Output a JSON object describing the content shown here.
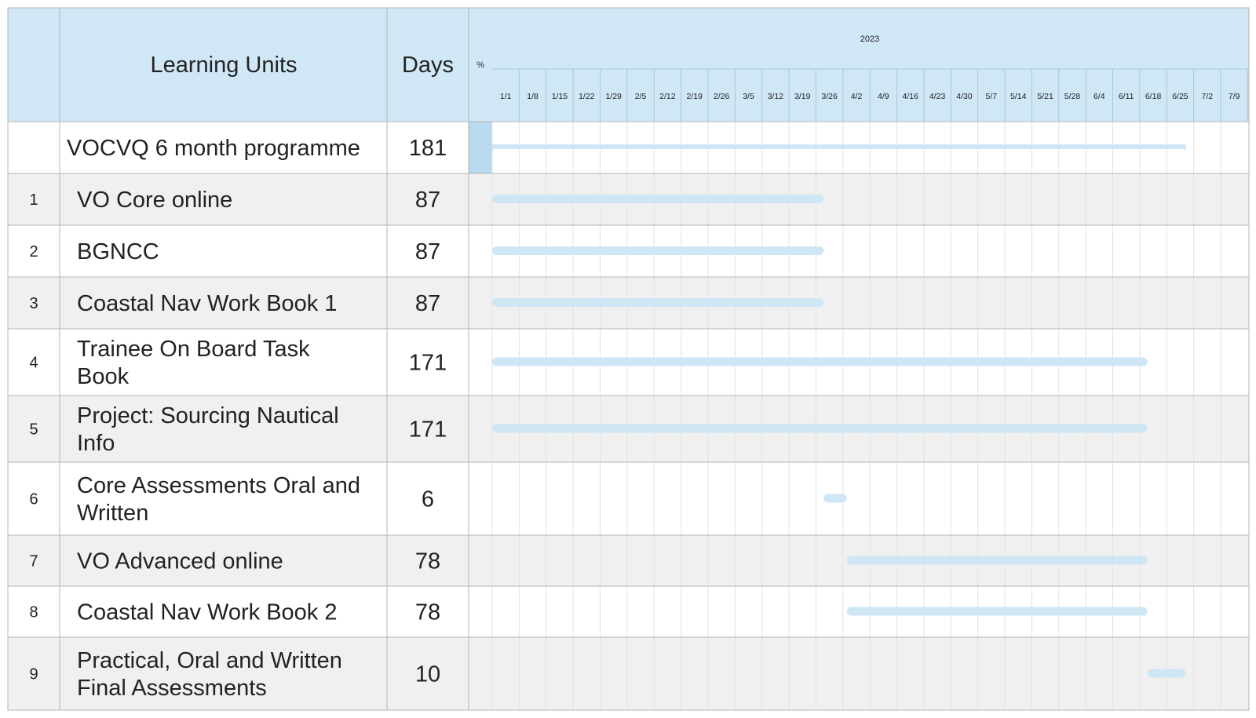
{
  "header": {
    "units_label": "Learning Units",
    "days_label": "Days",
    "pct_label": "%",
    "year_label": "2023"
  },
  "colors": {
    "header_bg": "#d0e8f6",
    "header_border": "#a9c6d8",
    "grid_line": "#dde3e8",
    "row_alt": "#f0f0f0",
    "row_white": "#ffffff",
    "bar": "#cfe6f5",
    "summary_bar": "#cfe6f5",
    "pct_fill": "#b9d9ef",
    "table_border": "#b5b5b5"
  },
  "chart_data": {
    "type": "gantt",
    "title": "",
    "week_ticks": [
      "1/1",
      "1/8",
      "1/15",
      "1/22",
      "1/29",
      "2/5",
      "2/12",
      "2/19",
      "2/26",
      "3/5",
      "3/12",
      "3/19",
      "3/26",
      "4/2",
      "4/9",
      "4/16",
      "4/23",
      "4/30",
      "5/7",
      "5/14",
      "5/21",
      "5/28",
      "6/4",
      "6/11",
      "6/18",
      "6/25",
      "7/2",
      "7/9"
    ],
    "x_range": [
      "2023-01-01",
      "2023-07-16"
    ],
    "tasks": [
      {
        "id": "",
        "name": "VOCVQ 6 month programme",
        "days": 181,
        "start": "2023-01-01",
        "end": "2023-06-30",
        "summary": true,
        "lines": [
          "VOCVQ 6 month programme"
        ]
      },
      {
        "id": "1",
        "name": "VO Core online",
        "days": 87,
        "start": "2023-01-01",
        "end": "2023-03-28",
        "summary": false,
        "lines": [
          "VO Core online"
        ]
      },
      {
        "id": "2",
        "name": "BGNCC",
        "days": 87,
        "start": "2023-01-01",
        "end": "2023-03-28",
        "summary": false,
        "lines": [
          "BGNCC"
        ]
      },
      {
        "id": "3",
        "name": "Coastal Nav Work Book 1",
        "days": 87,
        "start": "2023-01-01",
        "end": "2023-03-28",
        "summary": false,
        "lines": [
          "Coastal Nav Work Book 1"
        ]
      },
      {
        "id": "4",
        "name": "Trainee On Board Task Book",
        "days": 171,
        "start": "2023-01-01",
        "end": "2023-06-20",
        "summary": false,
        "lines": [
          "Trainee On Board Task",
          "Book"
        ]
      },
      {
        "id": "5",
        "name": "Project: Sourcing Nautical Info",
        "days": 171,
        "start": "2023-01-01",
        "end": "2023-06-20",
        "summary": false,
        "lines": [
          "Project: Sourcing Nautical",
          "Info"
        ]
      },
      {
        "id": "6",
        "name": "Core Assessments Oral and Written",
        "days": 6,
        "start": "2023-03-28",
        "end": "2023-04-03",
        "summary": false,
        "lines": [
          "Core Assessments Oral and",
          "Written"
        ]
      },
      {
        "id": "7",
        "name": "VO Advanced online",
        "days": 78,
        "start": "2023-04-03",
        "end": "2023-06-20",
        "summary": false,
        "lines": [
          "VO Advanced online"
        ]
      },
      {
        "id": "8",
        "name": "Coastal Nav Work Book 2",
        "days": 78,
        "start": "2023-04-03",
        "end": "2023-06-20",
        "summary": false,
        "lines": [
          "Coastal Nav Work Book 2"
        ]
      },
      {
        "id": "9",
        "name": "Practical, Oral and Written Final Assessments",
        "days": 10,
        "start": "2023-06-20",
        "end": "2023-06-30",
        "summary": false,
        "lines": [
          "Practical, Oral and Written",
          "Final Assessments"
        ]
      }
    ]
  }
}
